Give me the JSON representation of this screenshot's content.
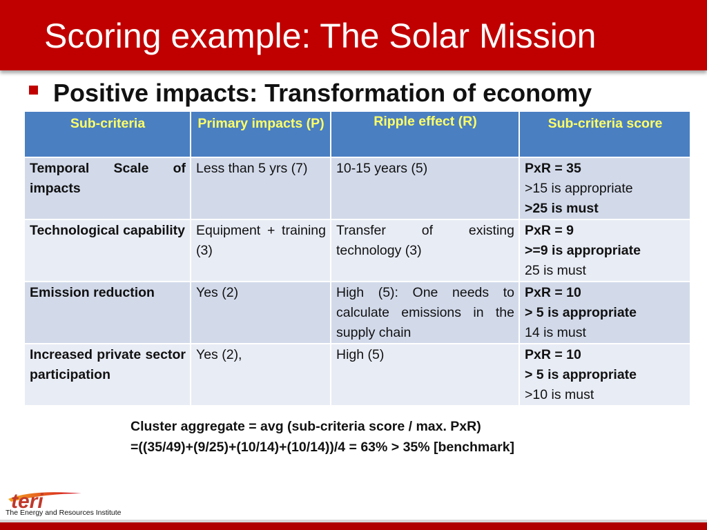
{
  "slide": {
    "title": "Scoring example: The Solar Mission",
    "subtitle": "Positive impacts: Transformation of economy"
  },
  "table": {
    "headers": [
      "Sub-criteria",
      "Primary impacts (P)",
      "Ripple effect (R)",
      "Sub-criteria score"
    ],
    "rows": [
      {
        "criterion": "Temporal Scale of impacts",
        "primary": "Less than 5 yrs (7)",
        "ripple": "10-15 years (5)",
        "score": [
          "PxR = 35",
          ">15 is appropriate",
          ">25 is must"
        ]
      },
      {
        "criterion": "Technological capability",
        "primary": "Equipment + training (3)",
        "ripple": "Transfer of existing technology (3)",
        "score": [
          "PxR = 9",
          ">=9 is appropriate",
          "25 is must"
        ]
      },
      {
        "criterion": "Emission reduction",
        "primary": "Yes (2)",
        "ripple": "High (5): One needs to calculate emissions in the supply chain",
        "score": [
          "PxR = 10",
          "> 5 is appropriate",
          "14 is must"
        ]
      },
      {
        "criterion": "Increased private sector participation",
        "primary": "Yes (2),",
        "ripple": "High (5)",
        "score": [
          "PxR = 10",
          "> 5 is appropriate",
          ">10 is must"
        ]
      }
    ]
  },
  "aggregate": {
    "line1": "Cluster aggregate = avg (sub-criteria score / max. PxR)",
    "line2": "=((35/49)+(9/25)+(10/14)+(10/14))/4 = 63% > 35% [benchmark]"
  },
  "logo": {
    "wordmark": "teri",
    "caption": "The Energy and Resources Institute"
  },
  "colors": {
    "title_bar": "#c00000",
    "header_fill": "#4a7fc2",
    "header_text": "#ffff66",
    "row_fill": "#d2daea",
    "row_fill_alt": "#e8ecf5"
  }
}
